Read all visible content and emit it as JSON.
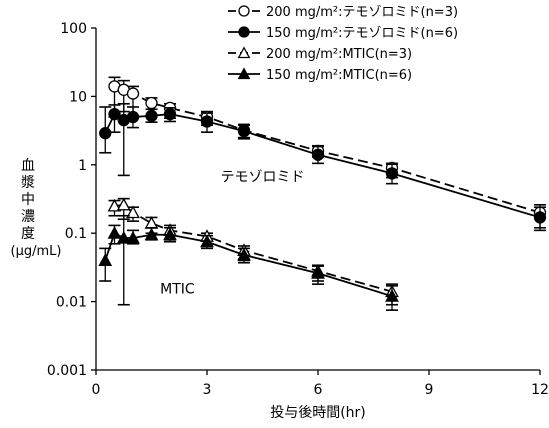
{
  "chart_data": {
    "type": "line",
    "xlabel": "投与後時間(hr)",
    "ylabel": [
      "血",
      "漿",
      "中",
      "濃",
      "度",
      "(μg/mL)"
    ],
    "xlim": [
      0,
      12
    ],
    "ylim": [
      0.001,
      100
    ],
    "yscale": "log",
    "xticks": [
      0,
      3,
      6,
      9,
      12
    ],
    "yticks": [
      0.001,
      0.01,
      0.1,
      1,
      10,
      100
    ],
    "ytick_labels": [
      "0.001",
      "0.01",
      "0.1",
      "1",
      "10",
      "100"
    ],
    "grid": false,
    "legend_position": "top-right",
    "annotations": [
      {
        "text": "テモゾロミド",
        "x": 4.5,
        "y": 0.67
      },
      {
        "text": "MTIC",
        "x": 2.2,
        "y": 0.0155
      }
    ],
    "series": [
      {
        "name": "200 mg/m²:テモゾロミド(n=3)",
        "line": "dashed",
        "marker": "circle",
        "fill": "open",
        "x": [
          0.5,
          0.75,
          1,
          1.5,
          2,
          3,
          4,
          6,
          8,
          12
        ],
        "y": [
          14,
          12.5,
          11,
          8,
          6.8,
          5,
          3.2,
          1.6,
          0.9,
          0.2
        ],
        "err_low": [
          5,
          6,
          5,
          5,
          4.8,
          3.8,
          2.5,
          1.3,
          0.65,
          0.12
        ],
        "err_high": [
          19,
          17,
          14,
          9.5,
          7.8,
          6,
          3.8,
          1.9,
          1.05,
          0.26
        ]
      },
      {
        "name": "150 mg/m²:テモゾロミド(n=6)",
        "line": "solid",
        "marker": "circle",
        "fill": "filled",
        "x": [
          0.25,
          0.5,
          0.75,
          1,
          1.5,
          2,
          3,
          4,
          6,
          8,
          12
        ],
        "y": [
          2.9,
          5.5,
          4.5,
          5,
          5.2,
          5.5,
          4.3,
          3.1,
          1.4,
          0.75,
          0.17
        ],
        "err_low": [
          1.5,
          3,
          0.7,
          3.5,
          4.2,
          4.3,
          3,
          2.4,
          1.05,
          0.53,
          0.11
        ],
        "err_high": [
          7,
          7.5,
          7.8,
          7,
          6.5,
          6.8,
          5.7,
          3.9,
          1.85,
          1.02,
          0.24
        ]
      },
      {
        "name": "200 mg/m²:MTIC(n=3)",
        "line": "dashed",
        "marker": "triangle",
        "fill": "open",
        "x": [
          0.5,
          0.75,
          1,
          1.5,
          2,
          3,
          4,
          6,
          8
        ],
        "y": [
          0.25,
          0.26,
          0.2,
          0.14,
          0.11,
          0.09,
          0.056,
          0.028,
          0.014
        ],
        "err_low": [
          0.18,
          0.16,
          0.15,
          0.1,
          0.08,
          0.065,
          0.04,
          0.02,
          0.009
        ],
        "err_high": [
          0.3,
          0.32,
          0.24,
          0.17,
          0.13,
          0.1,
          0.065,
          0.033,
          0.018
        ]
      },
      {
        "name": "150 mg/m²:MTIC(n=6)",
        "line": "solid",
        "marker": "triangle",
        "fill": "filled",
        "x": [
          0.25,
          0.5,
          0.75,
          1,
          1.5,
          2,
          3,
          4,
          6,
          8
        ],
        "y": [
          0.04,
          0.1,
          0.085,
          0.085,
          0.095,
          0.095,
          0.075,
          0.048,
          0.026,
          0.012
        ],
        "err_low": [
          0.02,
          0.07,
          0.009,
          0.07,
          0.08,
          0.075,
          0.06,
          0.037,
          0.018,
          0.0075
        ],
        "err_high": [
          0.06,
          0.13,
          0.18,
          0.11,
          0.12,
          0.12,
          0.092,
          0.06,
          0.034,
          0.017
        ]
      }
    ]
  }
}
